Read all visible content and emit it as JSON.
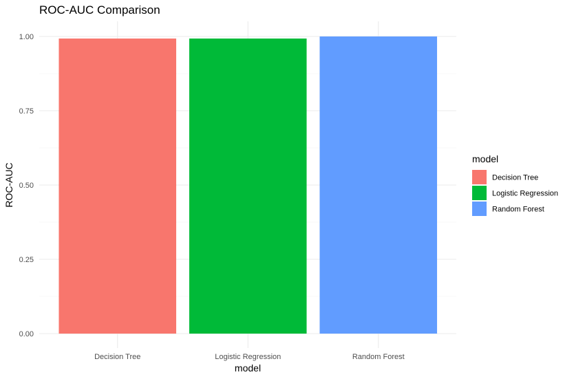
{
  "chart_data": {
    "type": "bar",
    "title": "ROC-AUC Comparison",
    "xlabel": "model",
    "ylabel": "ROC-AUC",
    "categories": [
      "Decision Tree",
      "Logistic Regression",
      "Random Forest"
    ],
    "values": [
      0.993,
      0.993,
      1.0
    ],
    "ylim": [
      0,
      1.0
    ],
    "yticks": [
      "0.00",
      "0.25",
      "0.50",
      "0.75",
      "1.00"
    ],
    "ytick_values": [
      0,
      0.25,
      0.5,
      0.75,
      1.0
    ],
    "grid": true,
    "legend": {
      "title": "model",
      "placement": "right",
      "entries": [
        "Decision Tree",
        "Logistic Regression",
        "Random Forest"
      ]
    },
    "colors": [
      "#F8766D",
      "#00BA38",
      "#619CFF"
    ]
  }
}
